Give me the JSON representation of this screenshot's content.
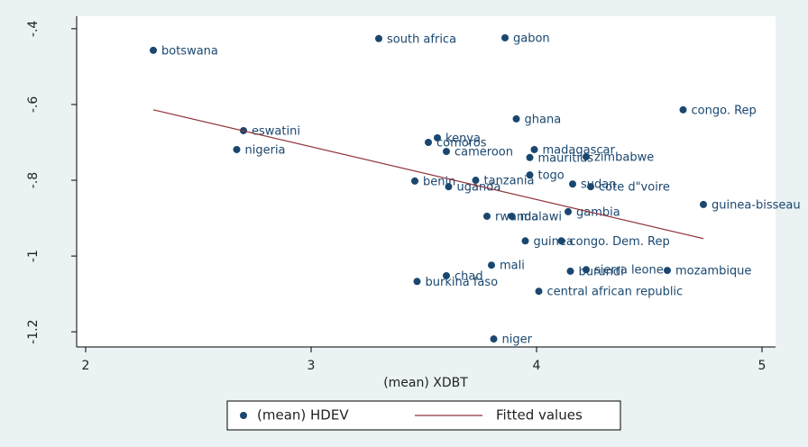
{
  "chart_data": {
    "type": "scatter",
    "x_label": "(mean) XDBT",
    "xlim": [
      1.96,
      5.06
    ],
    "ylim": [
      -1.24,
      -0.367
    ],
    "xticks": [
      2,
      3,
      4,
      5
    ],
    "yticks": [
      {
        "value": -0.4,
        "label": "-.4"
      },
      {
        "value": -0.6,
        "label": "-.6"
      },
      {
        "value": -0.8,
        "label": "-.8"
      },
      {
        "value": -1,
        "label": "-1"
      },
      {
        "value": -1.2,
        "label": "-1.2"
      }
    ],
    "series": [
      {
        "name": "(mean) HDEV",
        "color": "#1a476f",
        "type": "scatter",
        "labels": [
          "botswana",
          "south africa",
          "gabon",
          "congo. Rep",
          "ghana",
          "eswatini",
          "kenya",
          "comoros",
          "nigeria",
          "madagascar",
          "cameroon",
          "mauritius",
          "zimbabwe",
          "togo",
          "benin",
          "tanzania",
          "uganda",
          "sudan",
          "cote d\"voire",
          "guinea-bisseau",
          "rwanda",
          "malawi",
          "gambia",
          "guinea",
          "congo. Dem. Rep",
          "mali",
          "burundi",
          "sierra leone",
          "mozambique",
          "chad",
          "burkina faso",
          "central african republic",
          "niger"
        ],
        "x": [
          2.3,
          3.3,
          3.86,
          4.65,
          3.91,
          2.7,
          3.56,
          3.52,
          2.67,
          3.99,
          3.6,
          3.97,
          4.22,
          3.97,
          3.46,
          3.73,
          3.61,
          4.16,
          4.24,
          4.74,
          3.78,
          3.89,
          4.14,
          3.95,
          4.11,
          3.8,
          4.15,
          4.22,
          4.58,
          3.6,
          3.47,
          4.01,
          3.81
        ],
        "values": [
          -0.457,
          -0.426,
          -0.424,
          -0.614,
          -0.638,
          -0.669,
          -0.688,
          -0.7,
          -0.719,
          -0.719,
          -0.724,
          -0.74,
          -0.738,
          -0.786,
          -0.802,
          -0.8,
          -0.817,
          -0.81,
          -0.817,
          -0.864,
          -0.895,
          -0.895,
          -0.883,
          -0.96,
          -0.96,
          -1.024,
          -1.04,
          -1.036,
          -1.038,
          -1.052,
          -1.067,
          -1.093,
          -1.219
        ]
      },
      {
        "name": "Fitted values",
        "color": "#90353b",
        "type": "line",
        "x": [
          2.3,
          4.74
        ],
        "values": [
          -0.614,
          -0.954
        ]
      }
    ]
  }
}
